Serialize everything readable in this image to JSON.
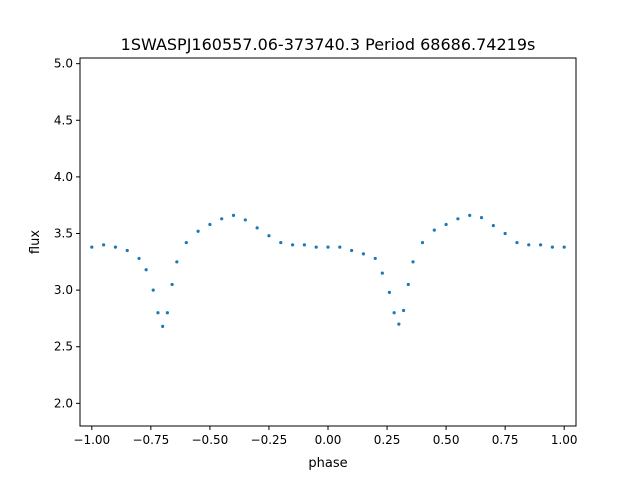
{
  "chart_data": {
    "type": "scatter",
    "title": "1SWASPJ160557.06-373740.3 Period 68686.74219s",
    "xlabel": "phase",
    "ylabel": "flux",
    "xlim": [
      -1.05,
      1.05
    ],
    "ylim": [
      1.8,
      5.05
    ],
    "xticks": [
      -1.0,
      -0.75,
      -0.5,
      -0.25,
      0.0,
      0.25,
      0.5,
      0.75,
      1.0
    ],
    "xtick_labels": [
      "−1.00",
      "−0.75",
      "−0.50",
      "−0.25",
      "0.00",
      "0.25",
      "0.50",
      "0.75",
      "1.00"
    ],
    "yticks": [
      2.0,
      2.5,
      3.0,
      3.5,
      4.0,
      4.5,
      5.0
    ],
    "ytick_labels": [
      "2.0",
      "2.5",
      "3.0",
      "3.5",
      "4.0",
      "4.5",
      "5.0"
    ],
    "grid": false,
    "marker_color": "#1f77b4",
    "series": [
      {
        "x": [
          -1.0,
          -0.95,
          -0.9,
          -0.85,
          -0.8,
          -0.77,
          -0.74,
          -0.72,
          -0.7,
          -0.68,
          -0.66,
          -0.64,
          -0.6,
          -0.55,
          -0.5,
          -0.45,
          -0.4,
          -0.35,
          -0.3,
          -0.25,
          -0.2,
          -0.15,
          -0.1,
          -0.05,
          0.0,
          0.05,
          0.1,
          0.15,
          0.2,
          0.23,
          0.26,
          0.28,
          0.3,
          0.32,
          0.34,
          0.36,
          0.4,
          0.45,
          0.5,
          0.55,
          0.6,
          0.65,
          0.7,
          0.75,
          0.8,
          0.85,
          0.9,
          0.95,
          1.0
        ],
        "y": [
          3.38,
          3.4,
          3.38,
          3.35,
          3.28,
          3.18,
          3.0,
          2.8,
          2.68,
          2.8,
          3.05,
          3.25,
          3.42,
          3.52,
          3.58,
          3.63,
          3.66,
          3.62,
          3.55,
          3.48,
          3.42,
          3.4,
          3.4,
          3.38,
          3.38,
          3.38,
          3.35,
          3.32,
          3.28,
          3.15,
          2.98,
          2.8,
          2.7,
          2.82,
          3.05,
          3.25,
          3.42,
          3.53,
          3.58,
          3.63,
          3.66,
          3.64,
          3.57,
          3.5,
          3.42,
          3.4,
          3.4,
          3.38,
          3.38
        ]
      }
    ]
  }
}
